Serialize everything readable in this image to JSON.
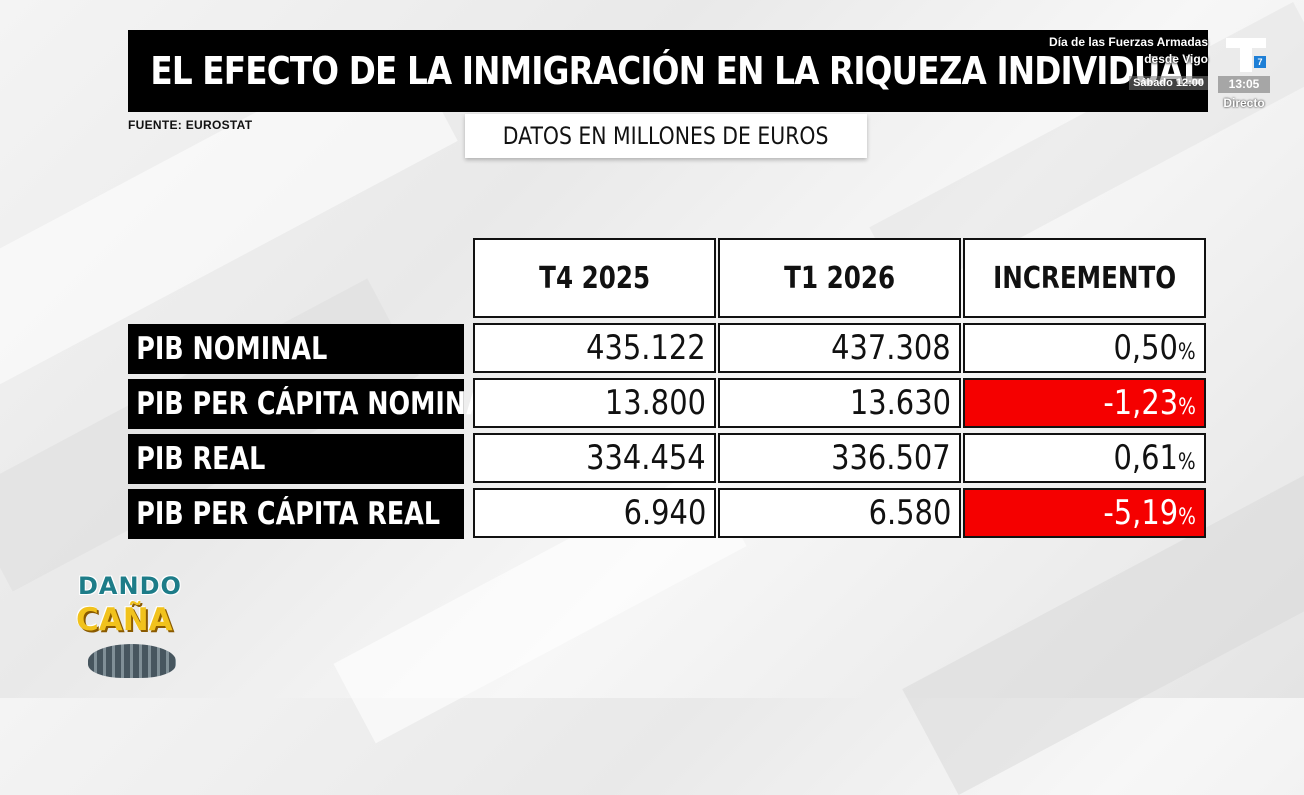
{
  "title": "EL EFECTO DE LA INMIGRACIÓN EN LA RIQUEZA INDIVIDUAL",
  "source": "FUENTE: EUROSTAT",
  "units": "DATOS EN MILLONES DE EUROS",
  "channel": {
    "event_line1": "Día de las Fuerzas Armadas",
    "event_line2": "desde Vigo",
    "event_time": "Sábado 12:00",
    "clock": "13:05",
    "live": "Directo",
    "logo_badge": "7"
  },
  "table": {
    "headers": [
      "T4 2025",
      "T1 2026",
      "INCREMENTO"
    ],
    "rows": [
      {
        "label": "PIB NOMINAL",
        "t4": "435.122",
        "t1": "437.308",
        "inc": "0,50",
        "negative": false
      },
      {
        "label": "PIB PER CÁPITA NOMINAL",
        "t4": "13.800",
        "t1": "13.630",
        "inc": "-1,23",
        "negative": true
      },
      {
        "label": "PIB REAL",
        "t4": "334.454",
        "t1": "336.507",
        "inc": "0,61",
        "negative": false
      },
      {
        "label": "PIB PER CÁPITA REAL",
        "t4": "6.940",
        "t1": "6.580",
        "inc": "-5,19",
        "negative": true
      }
    ],
    "percent_sign": "%"
  },
  "show": {
    "line1": "DANDO",
    "line2": "CAÑA"
  },
  "colors": {
    "negative": "#f50000",
    "title_bg": "#000000",
    "show_teal": "#1d7c88",
    "show_yellow": "#f1c21c"
  }
}
